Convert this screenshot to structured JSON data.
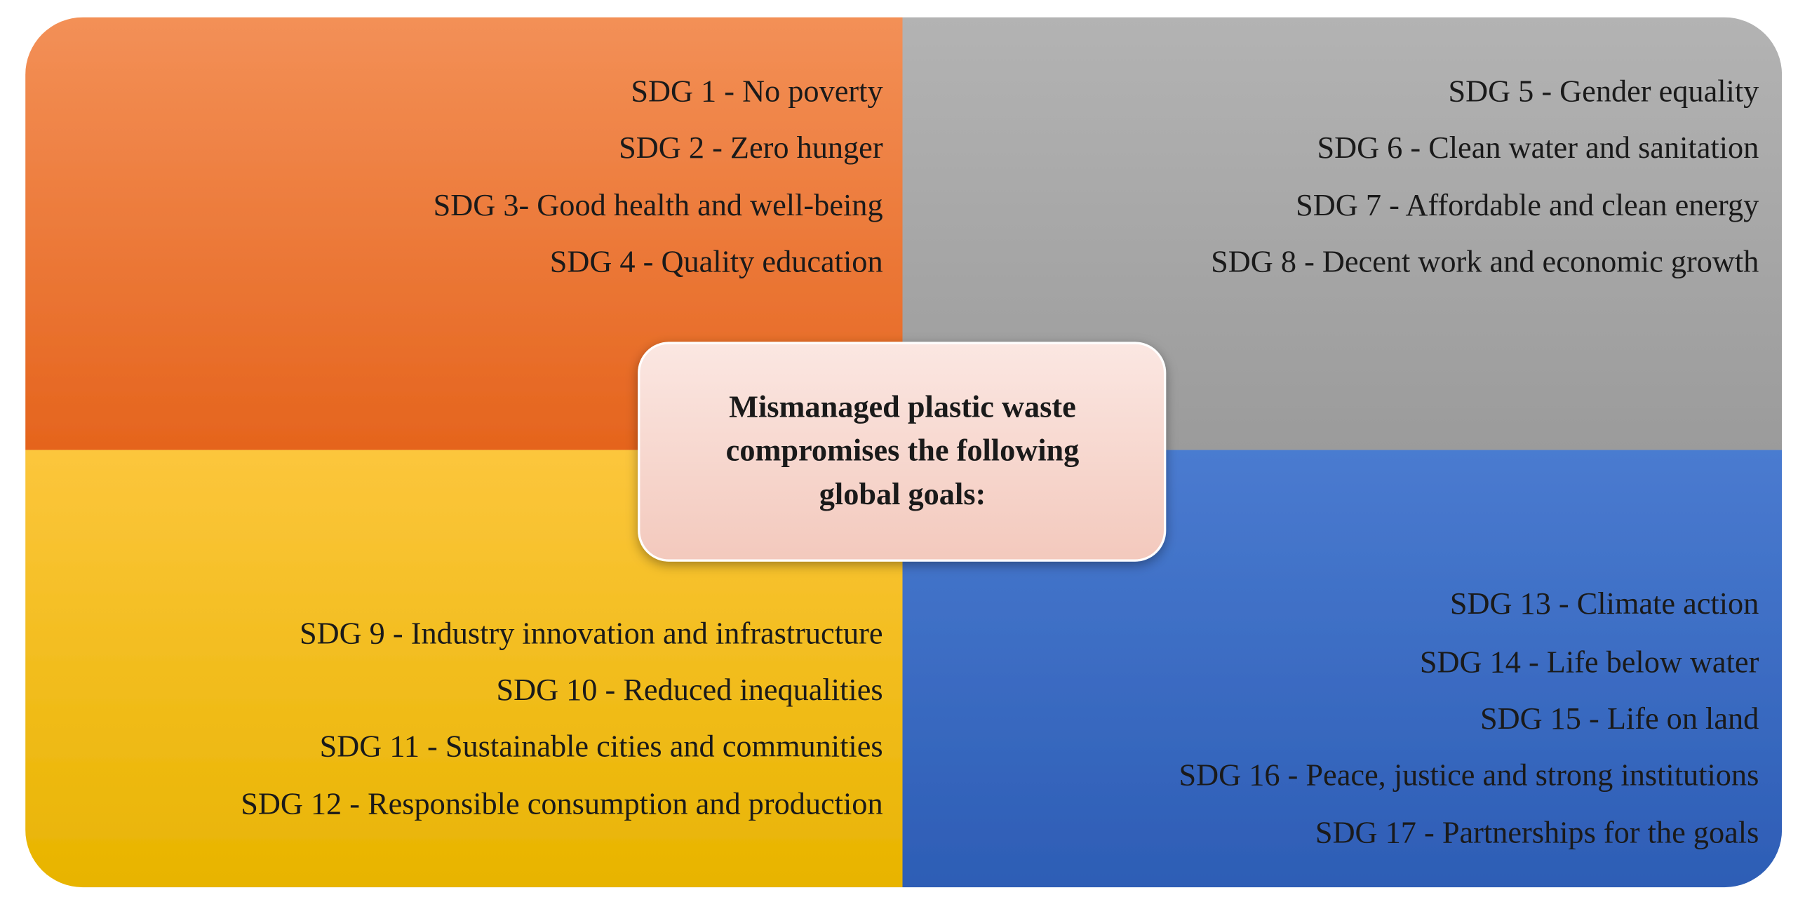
{
  "quadrants": [
    {
      "items": [
        "SDG 1 - No poverty",
        "SDG 2 - Zero hunger",
        "SDG 3- Good health and well-being",
        "SDG 4 - Quality  education"
      ]
    },
    {
      "items": [
        "SDG 5 - Gender equality",
        "SDG 6 - Clean  water and sanitation",
        "SDG 7 - Affordable and clean energy",
        "SDG 8 - Decent work and economic growth"
      ]
    },
    {
      "items": [
        "SDG 9 - Industry innovation and infrastructure",
        "SDG 10 - Reduced inequalities",
        "SDG 11 - Sustainable cities and communities",
        "SDG 12 - Responsible consumption and production"
      ]
    },
    {
      "items": [
        "SDG 13 - Climate action",
        "SDG 14 -  Life below water",
        "SDG 15 - Life on land",
        "SDG 16 -  Peace, justice and  strong institutions",
        "SDG 17 -  Partnerships for the goals"
      ]
    }
  ],
  "center": {
    "lines": [
      "Mismanaged plastic waste",
      "compromises the following",
      "global goals:"
    ]
  }
}
